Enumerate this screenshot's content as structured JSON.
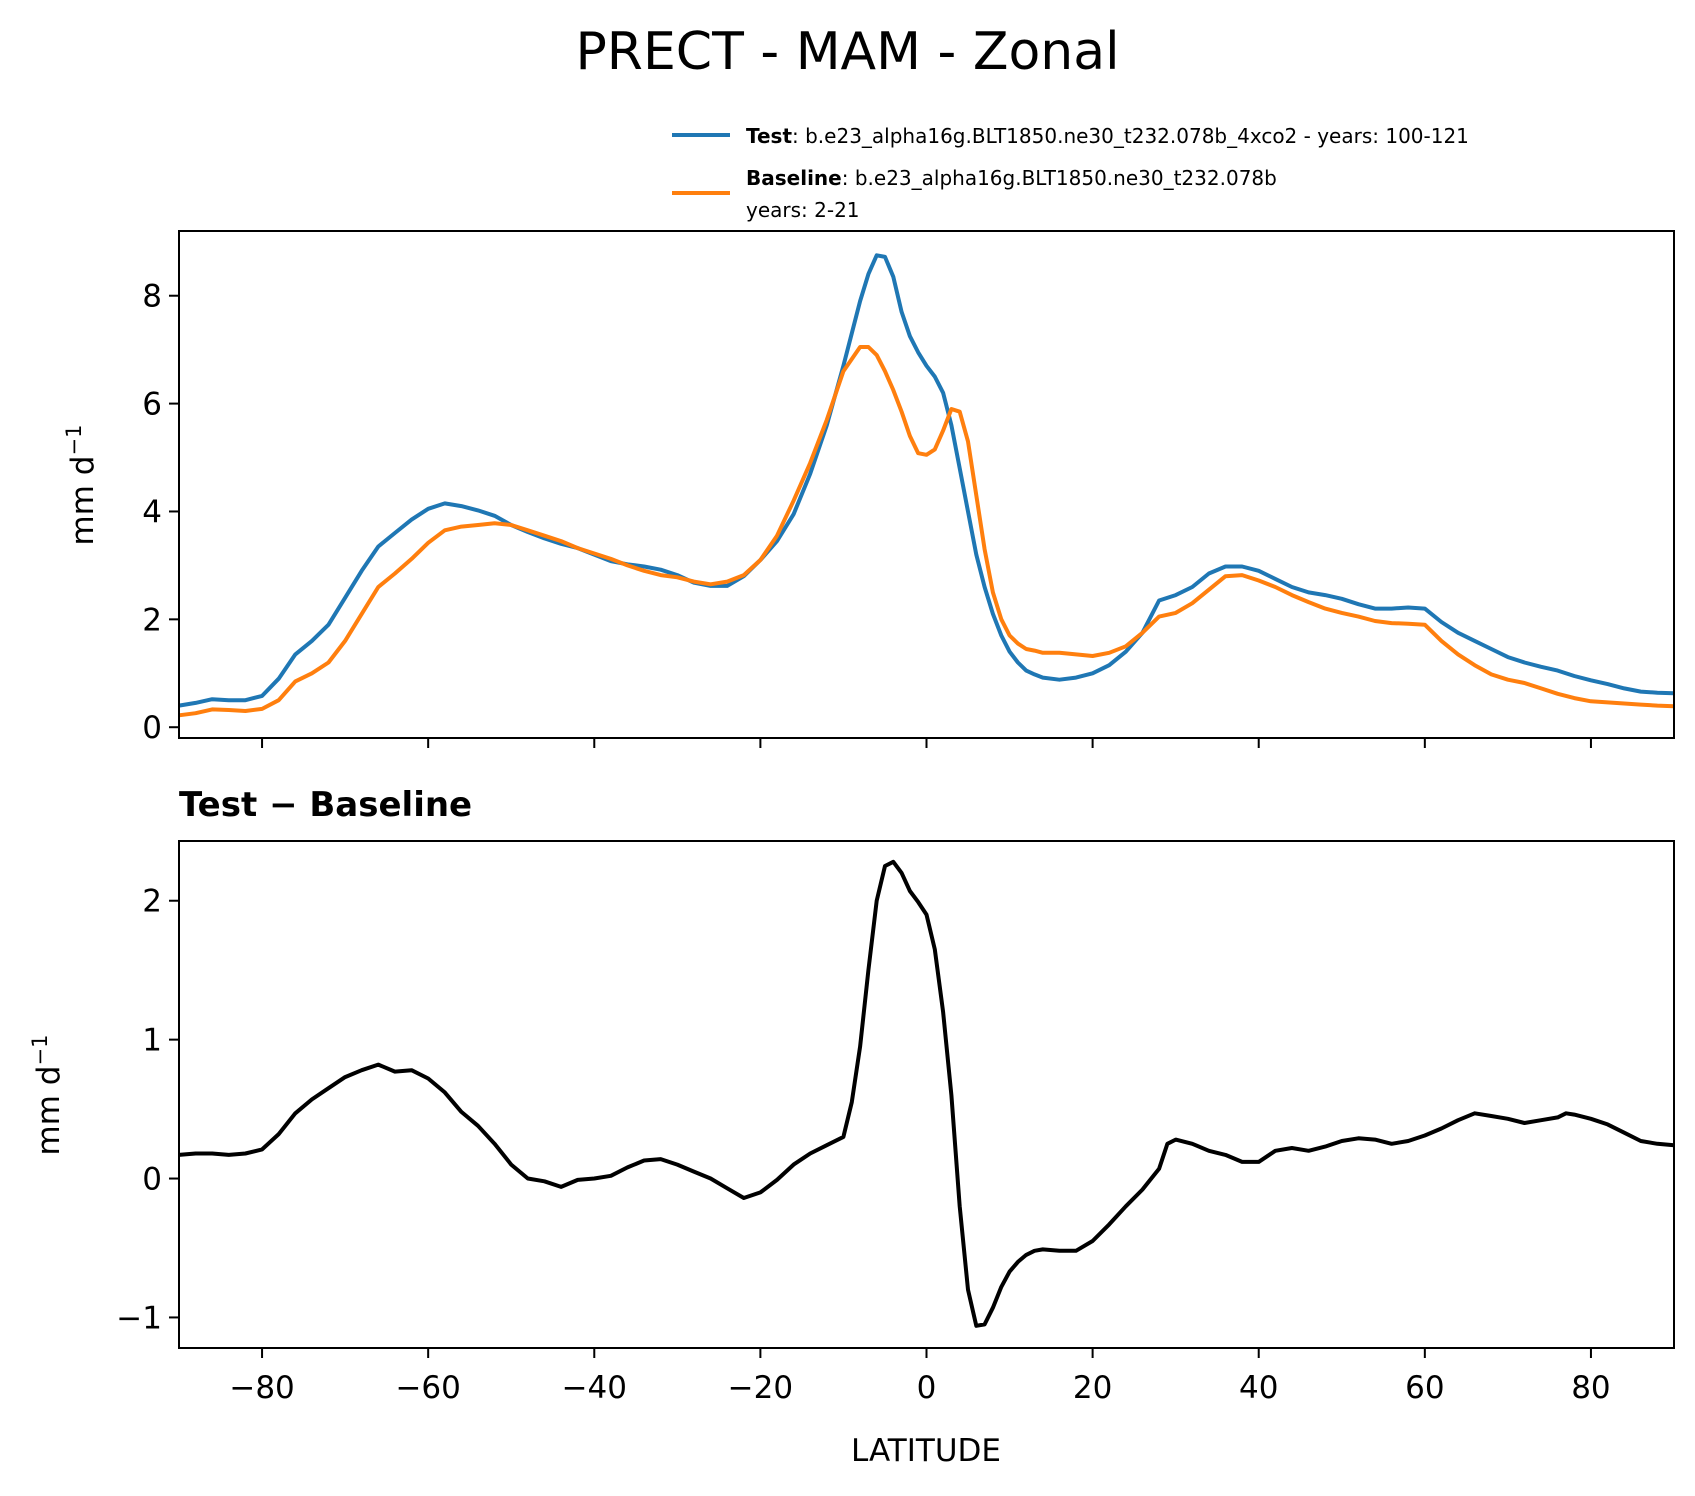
{
  "title": "PRECT - MAM - Zonal",
  "legend": {
    "test_label": "Test",
    "test_text": ": b.e23_alpha16g.BLT1850.ne30_t232.078b_4xco2 - years: 100-121",
    "baseline_label": "Baseline",
    "baseline_text": ": b.e23_alpha16g.BLT1850.ne30_t232.078b",
    "baseline_years": "years: 2-21"
  },
  "diff_title": "Test − Baseline",
  "colors": {
    "test": "#1f77b4",
    "baseline": "#ff7f0e",
    "diff": "#000000"
  },
  "chart_data": [
    {
      "type": "line",
      "xlabel": "",
      "ylabel": "mm d",
      "ylabel_sup": "−1",
      "xlim": [
        -90,
        90
      ],
      "ylim": [
        -0.2,
        9.2
      ],
      "yticks": [
        0,
        2,
        4,
        6,
        8
      ],
      "ytick_labels": [
        "0",
        "2",
        "4",
        "6",
        "8"
      ],
      "xticks": [
        -80,
        -60,
        -40,
        -20,
        0,
        20,
        40,
        60,
        80
      ],
      "xtick_labels_shown": false,
      "grid": false,
      "legend_position": "above-right",
      "series": [
        {
          "name": "Test",
          "color": "#1f77b4",
          "x": [
            -90,
            -88,
            -86,
            -84,
            -82,
            -80,
            -78,
            -76,
            -74,
            -72,
            -70,
            -68,
            -66,
            -64,
            -62,
            -60,
            -58,
            -56,
            -54,
            -52,
            -50,
            -48,
            -46,
            -44,
            -42,
            -40,
            -38,
            -36,
            -34,
            -32,
            -30,
            -28,
            -26,
            -24,
            -22,
            -20,
            -18,
            -16,
            -14,
            -12,
            -10,
            -8,
            -7,
            -6,
            -5,
            -4,
            -3,
            -2,
            -1,
            0,
            1,
            2,
            3,
            4,
            5,
            6,
            7,
            8,
            9,
            10,
            11,
            12,
            13,
            14,
            16,
            18,
            20,
            22,
            24,
            26,
            28,
            30,
            32,
            34,
            36,
            38,
            40,
            42,
            44,
            46,
            48,
            50,
            52,
            54,
            56,
            58,
            60,
            62,
            64,
            66,
            68,
            70,
            72,
            74,
            76,
            78,
            80,
            82,
            84,
            86,
            88,
            90
          ],
          "values": [
            0.4,
            0.45,
            0.52,
            0.5,
            0.5,
            0.58,
            0.9,
            1.35,
            1.6,
            1.9,
            2.4,
            2.9,
            3.35,
            3.6,
            3.85,
            4.05,
            4.15,
            4.1,
            4.02,
            3.92,
            3.75,
            3.62,
            3.5,
            3.4,
            3.32,
            3.2,
            3.08,
            3.02,
            2.98,
            2.92,
            2.82,
            2.68,
            2.62,
            2.62,
            2.8,
            3.1,
            3.45,
            3.95,
            4.7,
            5.6,
            6.7,
            7.9,
            8.4,
            8.75,
            8.72,
            8.35,
            7.7,
            7.25,
            6.95,
            6.7,
            6.5,
            6.2,
            5.6,
            4.8,
            4.0,
            3.2,
            2.6,
            2.1,
            1.7,
            1.4,
            1.2,
            1.05,
            0.98,
            0.92,
            0.88,
            0.92,
            1.0,
            1.15,
            1.4,
            1.75,
            2.35,
            2.45,
            2.6,
            2.85,
            2.98,
            2.98,
            2.9,
            2.75,
            2.6,
            2.5,
            2.45,
            2.38,
            2.28,
            2.2,
            2.2,
            2.22,
            2.2,
            1.95,
            1.75,
            1.6,
            1.45,
            1.3,
            1.2,
            1.12,
            1.05,
            0.95,
            0.87,
            0.8,
            0.72,
            0.66,
            0.64,
            0.63
          ]
        },
        {
          "name": "Baseline",
          "color": "#ff7f0e",
          "x": [
            -90,
            -88,
            -86,
            -84,
            -82,
            -80,
            -78,
            -76,
            -74,
            -72,
            -70,
            -68,
            -66,
            -64,
            -62,
            -60,
            -58,
            -56,
            -54,
            -52,
            -50,
            -48,
            -46,
            -44,
            -42,
            -40,
            -38,
            -36,
            -34,
            -32,
            -30,
            -28,
            -26,
            -24,
            -22,
            -20,
            -18,
            -16,
            -14,
            -12,
            -10,
            -8,
            -7,
            -6,
            -5,
            -4,
            -3,
            -2,
            -1,
            0,
            1,
            2,
            3,
            4,
            5,
            6,
            7,
            8,
            9,
            10,
            11,
            12,
            13,
            14,
            16,
            18,
            20,
            22,
            24,
            26,
            28,
            30,
            32,
            34,
            36,
            38,
            40,
            42,
            44,
            46,
            48,
            50,
            52,
            54,
            56,
            58,
            60,
            62,
            64,
            66,
            68,
            70,
            72,
            74,
            76,
            78,
            80,
            82,
            84,
            86,
            88,
            90
          ],
          "values": [
            0.22,
            0.26,
            0.33,
            0.32,
            0.3,
            0.34,
            0.5,
            0.85,
            1.0,
            1.2,
            1.6,
            2.1,
            2.6,
            2.85,
            3.12,
            3.42,
            3.65,
            3.72,
            3.75,
            3.78,
            3.75,
            3.65,
            3.55,
            3.45,
            3.32,
            3.22,
            3.12,
            3.0,
            2.9,
            2.82,
            2.78,
            2.7,
            2.65,
            2.7,
            2.82,
            3.1,
            3.55,
            4.2,
            4.9,
            5.7,
            6.6,
            7.05,
            7.05,
            6.9,
            6.6,
            6.25,
            5.85,
            5.4,
            5.08,
            5.05,
            5.15,
            5.5,
            5.9,
            5.85,
            5.3,
            4.3,
            3.3,
            2.5,
            2.0,
            1.7,
            1.55,
            1.45,
            1.42,
            1.38,
            1.38,
            1.35,
            1.32,
            1.38,
            1.5,
            1.75,
            2.05,
            2.12,
            2.3,
            2.55,
            2.8,
            2.82,
            2.72,
            2.6,
            2.45,
            2.32,
            2.2,
            2.12,
            2.05,
            1.97,
            1.93,
            1.92,
            1.9,
            1.6,
            1.35,
            1.15,
            0.98,
            0.88,
            0.82,
            0.72,
            0.62,
            0.54,
            0.48,
            0.46,
            0.44,
            0.42,
            0.4,
            0.39
          ]
        }
      ]
    },
    {
      "type": "line",
      "title": "Test − Baseline",
      "xlabel": "LATITUDE",
      "ylabel": "mm d",
      "ylabel_sup": "−1",
      "xlim": [
        -90,
        90
      ],
      "ylim": [
        -1.22,
        2.43
      ],
      "yticks": [
        -1,
        0,
        1,
        2
      ],
      "ytick_labels": [
        "−1",
        "0",
        "1",
        "2"
      ],
      "xticks": [
        -80,
        -60,
        -40,
        -20,
        0,
        20,
        40,
        60,
        80
      ],
      "xtick_labels": [
        "−80",
        "−60",
        "−40",
        "−20",
        "0",
        "20",
        "40",
        "60",
        "80"
      ],
      "grid": false,
      "series": [
        {
          "name": "",
          "color": "#000000",
          "x": [
            -90,
            -88,
            -86,
            -84,
            -82,
            -80,
            -78,
            -76,
            -74,
            -72,
            -70,
            -68,
            -66,
            -64,
            -62,
            -60,
            -58,
            -56,
            -54,
            -52,
            -50,
            -48,
            -46,
            -44,
            -42,
            -40,
            -38,
            -36,
            -34,
            -32,
            -30,
            -28,
            -26,
            -24,
            -22,
            -20,
            -18,
            -16,
            -14,
            -12,
            -10,
            -9,
            -8,
            -7,
            -6,
            -5,
            -4,
            -3,
            -2,
            -1,
            0,
            1,
            2,
            3,
            4,
            5,
            6,
            7,
            8,
            9,
            10,
            11,
            12,
            13,
            14,
            16,
            18,
            20,
            22,
            24,
            26,
            28,
            29,
            30,
            32,
            34,
            36,
            38,
            40,
            42,
            44,
            46,
            48,
            50,
            52,
            54,
            56,
            58,
            60,
            62,
            64,
            66,
            68,
            70,
            72,
            74,
            76,
            77,
            78,
            80,
            82,
            84,
            86,
            88,
            90
          ],
          "values": [
            0.17,
            0.18,
            0.18,
            0.17,
            0.18,
            0.21,
            0.32,
            0.47,
            0.57,
            0.65,
            0.73,
            0.78,
            0.82,
            0.77,
            0.78,
            0.72,
            0.62,
            0.48,
            0.38,
            0.25,
            0.1,
            0.0,
            -0.02,
            -0.06,
            -0.01,
            0.0,
            0.02,
            0.08,
            0.13,
            0.14,
            0.1,
            0.05,
            0.0,
            -0.07,
            -0.14,
            -0.1,
            -0.01,
            0.1,
            0.18,
            0.24,
            0.3,
            0.55,
            0.95,
            1.5,
            2.0,
            2.25,
            2.28,
            2.2,
            2.07,
            1.99,
            1.9,
            1.65,
            1.2,
            0.6,
            -0.2,
            -0.8,
            -1.06,
            -1.05,
            -0.93,
            -0.78,
            -0.67,
            -0.6,
            -0.55,
            -0.52,
            -0.51,
            -0.52,
            -0.52,
            -0.45,
            -0.33,
            -0.2,
            -0.08,
            0.07,
            0.25,
            0.28,
            0.25,
            0.2,
            0.17,
            0.12,
            0.12,
            0.2,
            0.22,
            0.2,
            0.23,
            0.27,
            0.29,
            0.28,
            0.25,
            0.27,
            0.31,
            0.36,
            0.42,
            0.47,
            0.45,
            0.43,
            0.4,
            0.42,
            0.44,
            0.47,
            0.46,
            0.43,
            0.39,
            0.33,
            0.27,
            0.25,
            0.24
          ]
        }
      ]
    }
  ]
}
